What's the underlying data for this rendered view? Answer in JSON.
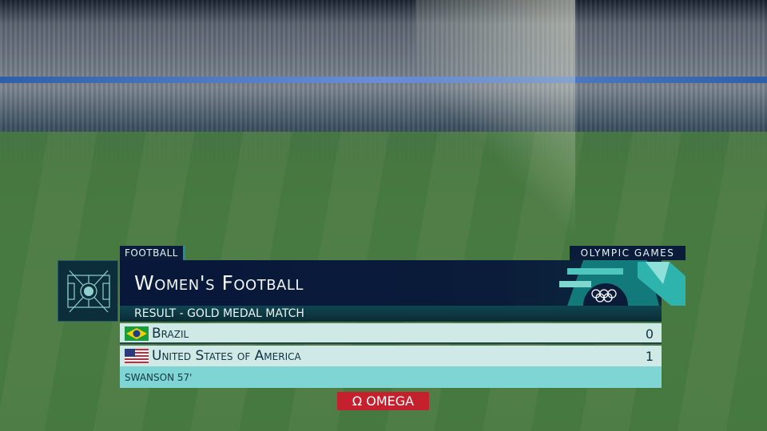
{
  "graphic": {
    "sport_tab": "FOOTBALL",
    "brand_tab": "OLYMPIC GAMES",
    "title": "Women's Football",
    "subtitle": "RESULT - GOLD MEDAL MATCH",
    "teams": [
      {
        "name": "Brazil",
        "flag": "brazil-flag",
        "score": "0"
      },
      {
        "name": "United States of America",
        "flag": "usa-flag",
        "score": "1"
      }
    ],
    "scorer": "SWANSON 57'",
    "sponsor": "OMEGA",
    "sponsor_symbol": "Ω"
  },
  "colors": {
    "navy": "#0b1c3a",
    "teal_dark": "#0e3c47",
    "row_light": "#cfe9e7",
    "row_accent": "#7fd4d4",
    "omega_red": "#c5202e"
  }
}
